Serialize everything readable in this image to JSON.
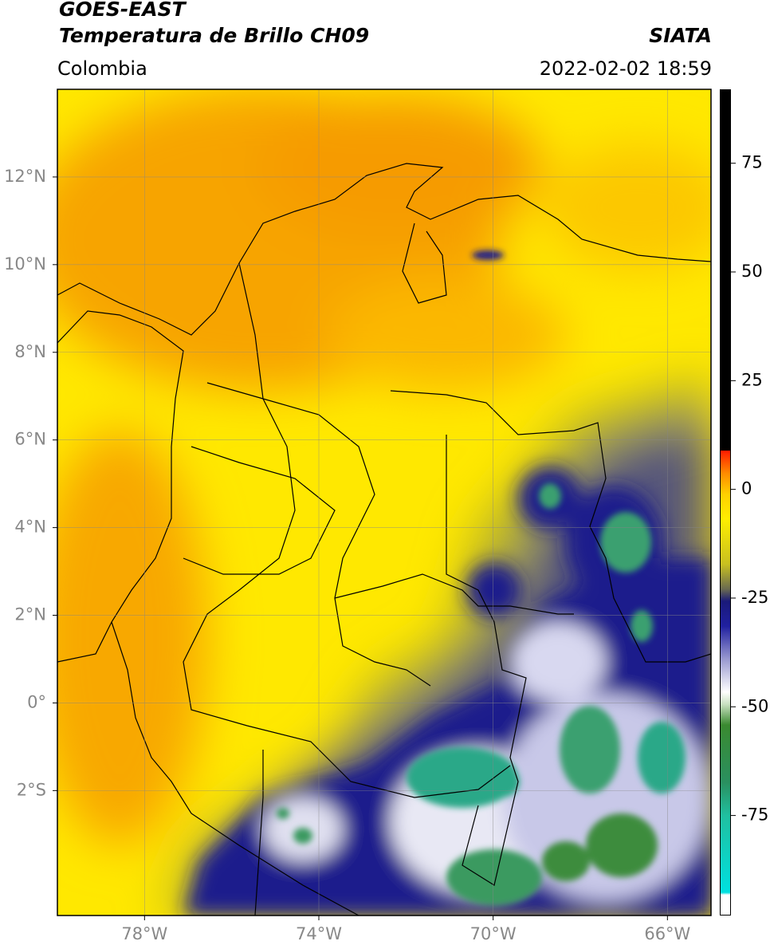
{
  "header": {
    "title": "GOES-EAST",
    "subtitle": "Temperatura de Brillo CH09",
    "source": "SIATA",
    "region": "Colombia",
    "datetime": "2022-02-02 18:59"
  },
  "map": {
    "xlim": [
      -80,
      -65
    ],
    "ylim": [
      -4.85,
      14
    ],
    "xticks": [
      {
        "value": -78,
        "label": "78°W"
      },
      {
        "value": -74,
        "label": "74°W"
      },
      {
        "value": -70,
        "label": "70°W"
      },
      {
        "value": -66,
        "label": "66°W"
      }
    ],
    "yticks": [
      {
        "value": 12,
        "label": "12°N"
      },
      {
        "value": 10,
        "label": "10°N"
      },
      {
        "value": 8,
        "label": "8°N"
      },
      {
        "value": 6,
        "label": "6°N"
      },
      {
        "value": 4,
        "label": "4°N"
      },
      {
        "value": 2,
        "label": "2°N"
      },
      {
        "value": 0,
        "label": "0°"
      },
      {
        "value": -2,
        "label": "2°S"
      }
    ]
  },
  "colorbar": {
    "lim": [
      -98,
      92
    ],
    "ticks": [
      75,
      50,
      25,
      0,
      -25,
      -50,
      -75
    ]
  }
}
